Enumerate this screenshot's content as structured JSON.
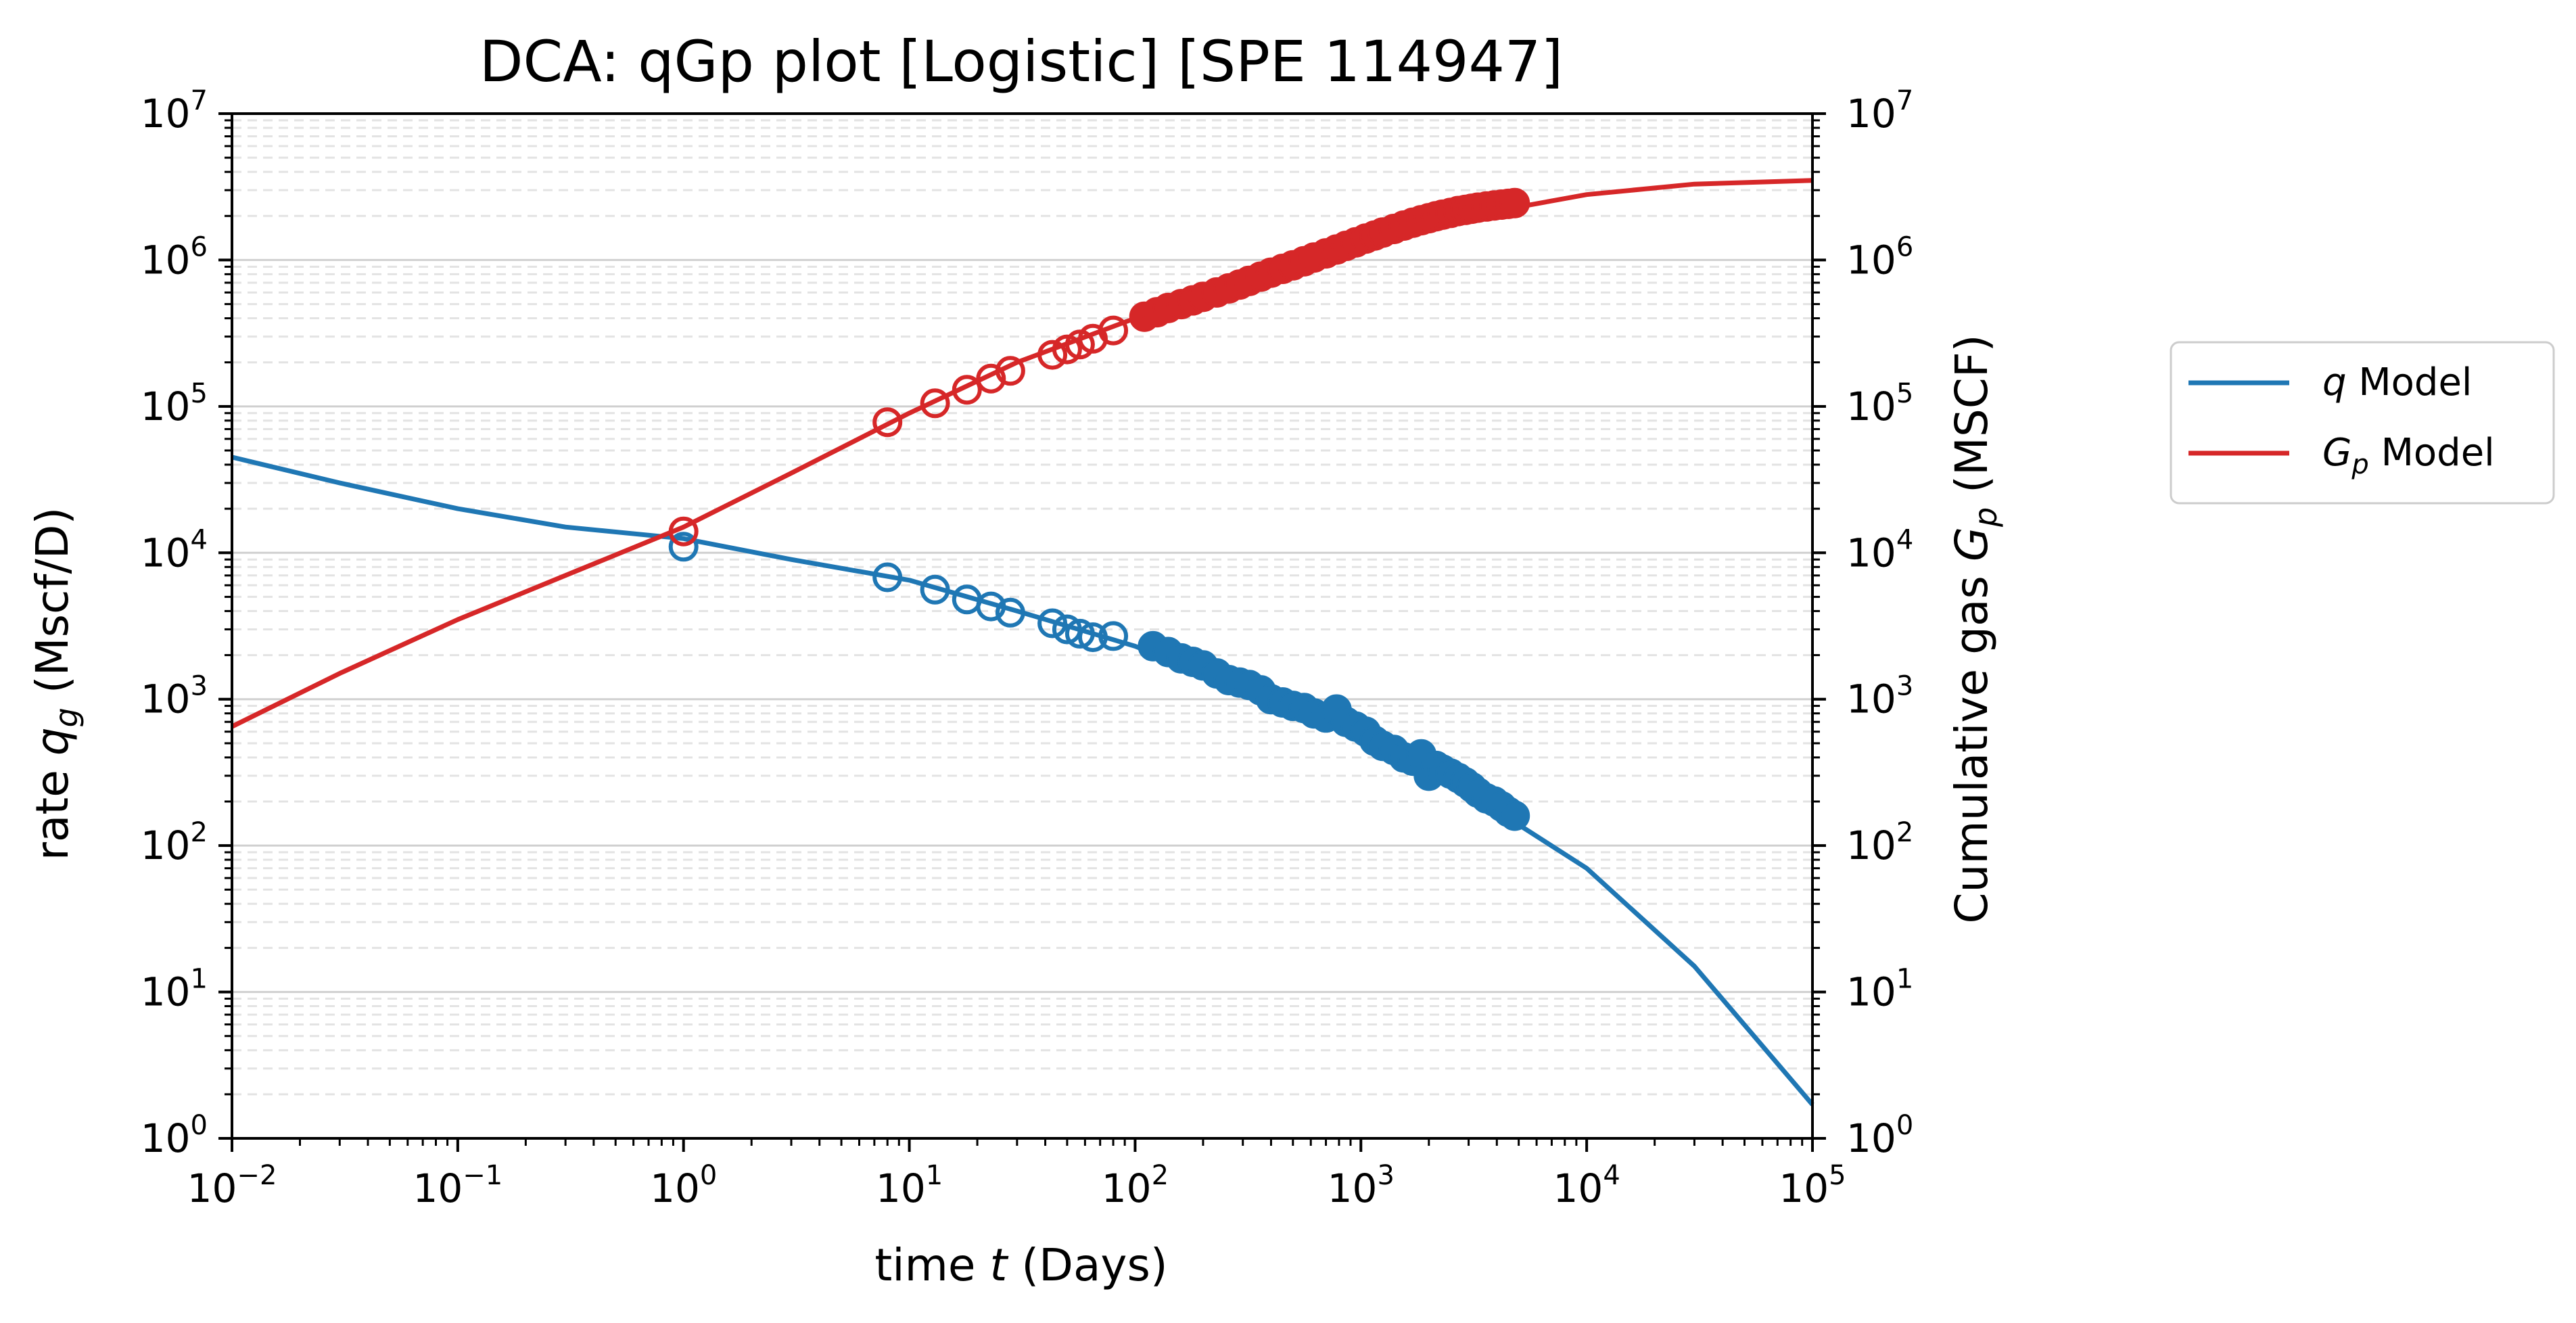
{
  "chart_data": {
    "type": "scatter",
    "title": "DCA: qGp plot  [Logistic]  [SPE 114947]",
    "xlabel": {
      "pre": "time ",
      "var": "t",
      "post": " (Days)"
    },
    "ylabel_left": {
      "pre": "rate ",
      "var": "q",
      "sub": "g",
      "post": " (Mscf/D)"
    },
    "ylabel_right": {
      "pre": "Cumulative gas ",
      "var": "G",
      "sub": "p",
      "post": " (MSCF)"
    },
    "x_scale": "log",
    "y_scale_left": "log",
    "y_scale_right": "log",
    "xlim": [
      0.01,
      100000
    ],
    "ylim_left": [
      1,
      10000000
    ],
    "ylim_right": [
      1,
      10000000
    ],
    "x_ticks": [
      {
        "base": "10",
        "exp": "−2"
      },
      {
        "base": "10",
        "exp": "−1"
      },
      {
        "base": "10",
        "exp": "0"
      },
      {
        "base": "10",
        "exp": "1"
      },
      {
        "base": "10",
        "exp": "2"
      },
      {
        "base": "10",
        "exp": "3"
      },
      {
        "base": "10",
        "exp": "4"
      },
      {
        "base": "10",
        "exp": "5"
      }
    ],
    "y_ticks": [
      {
        "base": "10",
        "exp": "0"
      },
      {
        "base": "10",
        "exp": "1"
      },
      {
        "base": "10",
        "exp": "2"
      },
      {
        "base": "10",
        "exp": "3"
      },
      {
        "base": "10",
        "exp": "4"
      },
      {
        "base": "10",
        "exp": "5"
      },
      {
        "base": "10",
        "exp": "6"
      },
      {
        "base": "10",
        "exp": "7"
      }
    ],
    "grid": "major solid, minor dashed (y)",
    "legend_position": "outside-right",
    "series": [
      {
        "name": {
          "var": "q",
          "sub": "",
          "post": " Model"
        },
        "axis": "left",
        "kind": "line",
        "color": "#1f77b4",
        "x": [
          0.01,
          0.03,
          0.1,
          0.3,
          1,
          3,
          10,
          30,
          100,
          300,
          1000,
          3000,
          10000,
          30000,
          100000
        ],
        "y": [
          45000,
          30000,
          20000,
          15000,
          12500,
          9000,
          6500,
          4000,
          2300,
          1150,
          550,
          230,
          70,
          15,
          1.7
        ]
      },
      {
        "name": {
          "var": "G",
          "sub": "p",
          "post": " Model"
        },
        "axis": "right",
        "kind": "line",
        "color": "#d62728",
        "x": [
          0.01,
          0.03,
          0.1,
          0.3,
          1,
          3,
          10,
          30,
          100,
          300,
          1000,
          3000,
          10000,
          30000,
          100000
        ],
        "y": [
          650,
          1500,
          3500,
          7000,
          15000,
          35000,
          90000,
          200000,
          400000,
          750000,
          1300000,
          2000000,
          2800000,
          3300000,
          3500000
        ]
      },
      {
        "name": "",
        "axis": "left",
        "kind": "points",
        "color": "#1f77b4",
        "marker": "open",
        "x": [
          1,
          8,
          13,
          18,
          23,
          28,
          43,
          50,
          57,
          65,
          80
        ],
        "y": [
          11000,
          6800,
          5600,
          4800,
          4300,
          3900,
          3300,
          3000,
          2800,
          2650,
          2700
        ]
      },
      {
        "name": "",
        "axis": "left",
        "kind": "points",
        "color": "#1f77b4",
        "marker": "filled",
        "x": [
          120,
          140,
          160,
          180,
          200,
          230,
          260,
          290,
          320,
          360,
          400,
          450,
          500,
          560,
          620,
          700,
          780,
          860,
          950,
          1050,
          1150,
          1250,
          1400,
          1550,
          1700,
          1850,
          2000,
          2150,
          2300,
          2500,
          2700,
          2900,
          3100,
          3300,
          3600,
          3900,
          4200,
          4500,
          4800
        ],
        "y": [
          2300,
          2100,
          1900,
          1800,
          1700,
          1500,
          1350,
          1300,
          1250,
          1150,
          1000,
          950,
          900,
          870,
          800,
          750,
          850,
          700,
          650,
          600,
          520,
          480,
          450,
          400,
          380,
          420,
          300,
          350,
          330,
          310,
          290,
          270,
          250,
          230,
          210,
          200,
          185,
          170,
          160
        ]
      },
      {
        "name": "",
        "axis": "right",
        "kind": "points",
        "color": "#d62728",
        "marker": "open",
        "x": [
          1,
          8,
          13,
          18,
          23,
          28,
          43,
          50,
          57,
          65,
          80
        ],
        "y": [
          14000,
          78000,
          105000,
          130000,
          155000,
          175000,
          225000,
          245000,
          265000,
          290000,
          330000
        ]
      },
      {
        "name": "",
        "axis": "right",
        "kind": "points",
        "color": "#d62728",
        "marker": "filled",
        "x": [
          110,
          125,
          140,
          160,
          180,
          200,
          230,
          260,
          290,
          320,
          360,
          400,
          450,
          500,
          560,
          620,
          700,
          780,
          860,
          950,
          1050,
          1150,
          1250,
          1400,
          1550,
          1700,
          1850,
          2000,
          2150,
          2300,
          2500,
          2700,
          2900,
          3100,
          3300,
          3600,
          3900,
          4200,
          4500,
          4800
        ],
        "y": [
          410000,
          440000,
          470000,
          500000,
          530000,
          560000,
          600000,
          640000,
          680000,
          720000,
          770000,
          820000,
          870000,
          920000,
          980000,
          1040000,
          1110000,
          1180000,
          1250000,
          1320000,
          1400000,
          1470000,
          1540000,
          1630000,
          1720000,
          1800000,
          1870000,
          1930000,
          1990000,
          2040000,
          2100000,
          2160000,
          2200000,
          2240000,
          2280000,
          2320000,
          2360000,
          2390000,
          2420000,
          2450000
        ]
      }
    ]
  }
}
